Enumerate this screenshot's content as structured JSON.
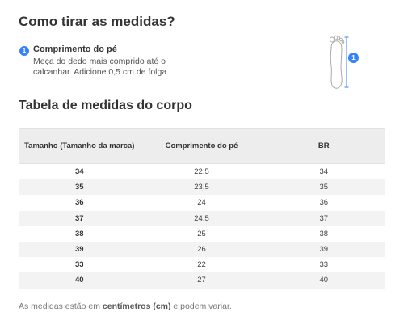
{
  "page": {
    "title": "Como tirar as medidas?",
    "step": {
      "number": "1",
      "title": "Comprimento do pé",
      "description": "Meça do dedo mais comprido até o calcanhar. Adicione 0,5 cm de folga."
    },
    "figure": {
      "icon": "foot-length-diagram-icon",
      "badge": "1"
    },
    "table_title": "Tabela de medidas do corpo",
    "table": {
      "headers": [
        "Tamanho (Tamanho da marca)",
        "Comprimento do pé",
        "BR"
      ],
      "rows": [
        [
          "34",
          "22.5",
          "34"
        ],
        [
          "35",
          "23.5",
          "35"
        ],
        [
          "36",
          "24",
          "36"
        ],
        [
          "37",
          "24.5",
          "37"
        ],
        [
          "38",
          "25",
          "38"
        ],
        [
          "39",
          "26",
          "39"
        ],
        [
          "33",
          "22",
          "33"
        ],
        [
          "40",
          "27",
          "40"
        ]
      ]
    },
    "note": {
      "prefix": "As medidas estão em ",
      "emphasis": "centímetros (cm)",
      "suffix": " e podem variar."
    }
  },
  "colors": {
    "accent": "#3483fa",
    "header_bg": "#ededed",
    "stripe_bg": "#f3f3f3",
    "text": "#333333"
  }
}
